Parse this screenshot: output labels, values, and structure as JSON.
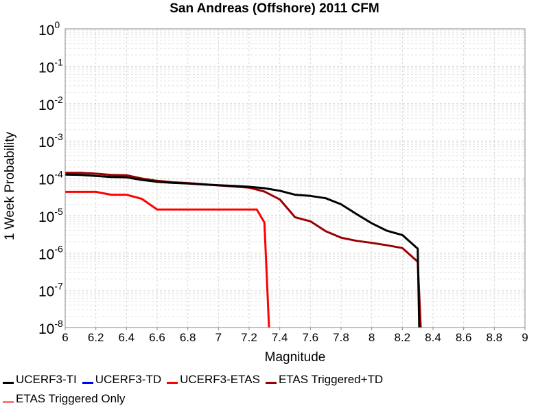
{
  "chart_data": {
    "type": "line",
    "title": "San Andreas (Offshore) 2011 CFM",
    "xlabel": "Magnitude",
    "ylabel": "1 Week Probability",
    "xlim": [
      6,
      9
    ],
    "ylim": [
      1e-08,
      1
    ],
    "yscale": "log",
    "grid": true,
    "legend_position": "bottom",
    "x_ticks": [
      "6",
      "6.2",
      "6.4",
      "6.6",
      "6.8",
      "7",
      "7.2",
      "7.4",
      "7.6",
      "7.8",
      "8",
      "8.2",
      "8.4",
      "8.6",
      "8.8",
      "9"
    ],
    "y_ticks": [
      {
        "base": "10",
        "exp": "0"
      },
      {
        "base": "10",
        "exp": "-1"
      },
      {
        "base": "10",
        "exp": "-2"
      },
      {
        "base": "10",
        "exp": "-3"
      },
      {
        "base": "10",
        "exp": "-4"
      },
      {
        "base": "10",
        "exp": "-5"
      },
      {
        "base": "10",
        "exp": "-6"
      },
      {
        "base": "10",
        "exp": "-7"
      },
      {
        "base": "10",
        "exp": "-8"
      }
    ],
    "series": [
      {
        "name": "UCERF3-TI",
        "color": "#000000",
        "draw": true,
        "x": [
          6.0,
          6.1,
          6.2,
          6.3,
          6.4,
          6.5,
          6.6,
          6.7,
          6.8,
          6.9,
          7.0,
          7.1,
          7.2,
          7.3,
          7.4,
          7.5,
          7.6,
          7.7,
          7.8,
          7.9,
          8.0,
          8.1,
          8.2,
          8.3,
          8.31
        ],
        "y": [
          0.000125,
          0.000122,
          0.000115,
          0.000108,
          0.000105,
          9e-05,
          8e-05,
          7.5e-05,
          7.2e-05,
          6.8e-05,
          6.5e-05,
          6.2e-05,
          5.9e-05,
          5.4e-05,
          4.6e-05,
          3.6e-05,
          3.35e-05,
          2.9e-05,
          2e-05,
          1.1e-05,
          6.2e-06,
          3.9e-06,
          3e-06,
          1.3e-06,
          1e-08
        ]
      },
      {
        "name": "UCERF3-TD",
        "color": "#0000ff",
        "draw": false,
        "x": [],
        "y": []
      },
      {
        "name": "UCERF3-ETAS",
        "color": "#ff0000",
        "draw": true,
        "x": [
          6.0,
          6.1,
          6.2,
          6.3,
          6.4,
          6.5,
          6.6,
          6.7,
          6.8,
          6.9,
          7.0,
          7.1,
          7.2,
          7.25,
          7.3,
          7.33
        ],
        "y": [
          4.3e-05,
          4.3e-05,
          4.3e-05,
          3.6e-05,
          3.6e-05,
          2.8e-05,
          1.45e-05,
          1.45e-05,
          1.45e-05,
          1.45e-05,
          1.45e-05,
          1.45e-05,
          1.45e-05,
          1.45e-05,
          6.5e-06,
          1e-08
        ]
      },
      {
        "name": "ETAS Triggered+TD",
        "color": "#990000",
        "draw": true,
        "x": [
          6.0,
          6.1,
          6.2,
          6.3,
          6.4,
          6.5,
          6.6,
          6.7,
          6.8,
          6.9,
          7.0,
          7.1,
          7.2,
          7.3,
          7.4,
          7.5,
          7.6,
          7.7,
          7.8,
          7.9,
          8.0,
          8.1,
          8.2,
          8.3,
          8.32
        ],
        "y": [
          0.00014,
          0.00014,
          0.000132,
          0.000122,
          0.00012,
          9.8e-05,
          8.5e-05,
          7.8e-05,
          7.4e-05,
          6.9e-05,
          6.4e-05,
          6e-05,
          5.6e-05,
          4.4e-05,
          2.7e-05,
          9e-06,
          7e-06,
          3.8e-06,
          2.55e-06,
          2.1e-06,
          1.85e-06,
          1.6e-06,
          1.35e-06,
          5.8e-07,
          1e-08
        ]
      },
      {
        "name": "ETAS Triggered Only",
        "color": "#ff7777",
        "draw": false,
        "x": [],
        "y": []
      }
    ]
  }
}
